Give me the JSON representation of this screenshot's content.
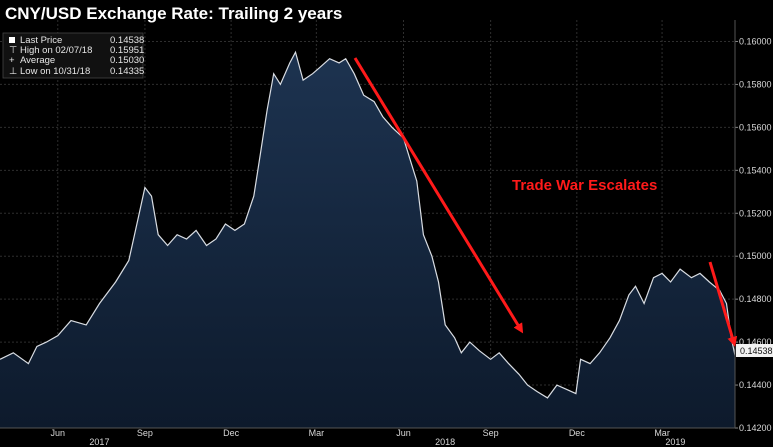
{
  "chart_data": {
    "type": "area",
    "title": "CNY/USD Exchange Rate: Trailing 2 years",
    "xlabel": "",
    "ylabel": "",
    "ylim": [
      0.142,
      0.161
    ],
    "xlim": [
      "2017-04-01",
      "2019-05-17"
    ],
    "grid": true,
    "legend_position": "top-left",
    "y_ticks": [
      "0.14200",
      "0.14400",
      "0.14600",
      "0.14800",
      "0.15000",
      "0.15200",
      "0.15400",
      "0.15600",
      "0.15800",
      "0.16000"
    ],
    "x_ticks": [
      {
        "label": "Jun",
        "date": "2017-06-01"
      },
      {
        "label": "Sep",
        "date": "2017-09-01"
      },
      {
        "label": "Dec",
        "date": "2017-12-01"
      },
      {
        "label": "Mar",
        "date": "2018-03-01"
      },
      {
        "label": "Jun",
        "date": "2018-06-01"
      },
      {
        "label": "Sep",
        "date": "2018-09-01"
      },
      {
        "label": "Dec",
        "date": "2018-12-01"
      },
      {
        "label": "Mar",
        "date": "2019-03-01"
      }
    ],
    "year_labels": [
      {
        "label": "2017",
        "date": "2017-07-15"
      },
      {
        "label": "2018",
        "date": "2018-07-15"
      },
      {
        "label": "2019",
        "date": "2019-03-15"
      }
    ],
    "legend": [
      {
        "label": "Last Price",
        "value": "0.14538"
      },
      {
        "label": "High on 02/07/18",
        "value": "0.15951"
      },
      {
        "label": "Average",
        "value": "0.15030"
      },
      {
        "label": "Low on 10/31/18",
        "value": "0.14335"
      }
    ],
    "last_value_label": "0.14538",
    "annotation": {
      "text": "Trade War Escalates"
    },
    "series": [
      {
        "x": [
          "2017-04-01",
          "2017-04-15",
          "2017-05-01",
          "2017-05-10",
          "2017-05-20",
          "2017-06-01",
          "2017-06-15",
          "2017-07-01",
          "2017-07-15",
          "2017-08-01",
          "2017-08-15",
          "2017-08-25",
          "2017-09-01",
          "2017-09-08",
          "2017-09-15",
          "2017-09-25",
          "2017-10-05",
          "2017-10-15",
          "2017-10-25",
          "2017-11-05",
          "2017-11-15",
          "2017-11-25",
          "2017-12-05",
          "2017-12-15",
          "2017-12-25",
          "2018-01-01",
          "2018-01-08",
          "2018-01-15",
          "2018-01-22",
          "2018-02-01",
          "2018-02-07",
          "2018-02-15",
          "2018-02-25",
          "2018-03-05",
          "2018-03-15",
          "2018-03-25",
          "2018-04-01",
          "2018-04-10",
          "2018-04-20",
          "2018-05-01",
          "2018-05-10",
          "2018-05-20",
          "2018-06-01",
          "2018-06-08",
          "2018-06-15",
          "2018-06-22",
          "2018-07-01",
          "2018-07-08",
          "2018-07-15",
          "2018-07-25",
          "2018-08-01",
          "2018-08-10",
          "2018-08-20",
          "2018-09-01",
          "2018-09-10",
          "2018-09-20",
          "2018-10-01",
          "2018-10-10",
          "2018-10-20",
          "2018-10-31",
          "2018-11-10",
          "2018-11-20",
          "2018-11-30",
          "2018-12-05",
          "2018-12-15",
          "2018-12-25",
          "2019-01-05",
          "2019-01-15",
          "2019-01-25",
          "2019-02-01",
          "2019-02-10",
          "2019-02-20",
          "2019-03-01",
          "2019-03-10",
          "2019-03-20",
          "2019-04-01",
          "2019-04-10",
          "2019-04-20",
          "2019-05-01",
          "2019-05-08",
          "2019-05-13",
          "2019-05-17"
        ],
        "y": [
          0.1452,
          0.1455,
          0.145,
          0.1458,
          0.146,
          0.1463,
          0.147,
          0.1468,
          0.1478,
          0.1488,
          0.1498,
          0.1518,
          0.1532,
          0.1528,
          0.151,
          0.1505,
          0.151,
          0.1508,
          0.1512,
          0.1505,
          0.1508,
          0.1515,
          0.1512,
          0.1515,
          0.1528,
          0.1548,
          0.1568,
          0.1585,
          0.158,
          0.159,
          0.1595,
          0.1582,
          0.1585,
          0.1588,
          0.1592,
          0.159,
          0.1592,
          0.1585,
          0.1575,
          0.1572,
          0.1565,
          0.156,
          0.1555,
          0.1545,
          0.1535,
          0.151,
          0.15,
          0.1488,
          0.1468,
          0.1462,
          0.1455,
          0.146,
          0.1456,
          0.1452,
          0.1455,
          0.145,
          0.1445,
          0.144,
          0.1437,
          0.1434,
          0.144,
          0.1438,
          0.1436,
          0.1452,
          0.145,
          0.1455,
          0.1462,
          0.147,
          0.1482,
          0.1486,
          0.1478,
          0.149,
          0.1492,
          0.1488,
          0.1494,
          0.149,
          0.1492,
          0.1488,
          0.1484,
          0.1478,
          0.1462,
          0.14538
        ]
      }
    ]
  }
}
